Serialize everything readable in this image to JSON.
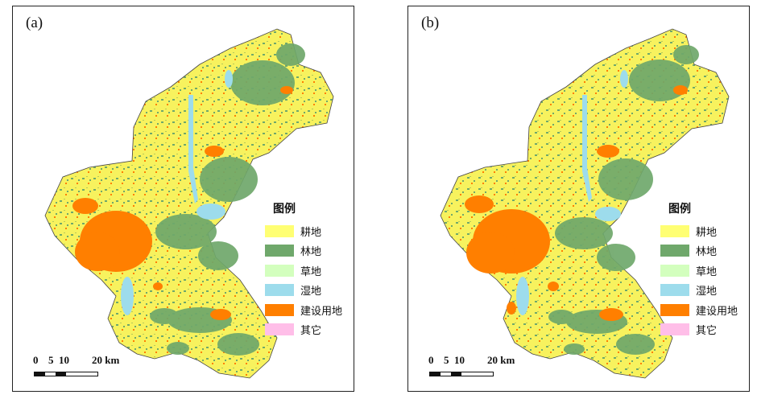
{
  "panels": [
    {
      "id": "a",
      "label": "(a)",
      "legend": {
        "title": "图例",
        "items": [
          {
            "label": "耕地",
            "color": "#ffff73"
          },
          {
            "label": "林地",
            "color": "#6fa86b"
          },
          {
            "label": "草地",
            "color": "#d3ffbe"
          },
          {
            "label": "湿地",
            "color": "#9ddcec"
          },
          {
            "label": "建设用地",
            "color": "#ff7f00"
          },
          {
            "label": "其它",
            "color": "#ffbee8"
          }
        ]
      },
      "scale": {
        "ticks": [
          "0",
          "5",
          "10",
          "20 km"
        ]
      }
    },
    {
      "id": "b",
      "label": "(b)",
      "legend": {
        "title": "图例",
        "items": [
          {
            "label": "耕地",
            "color": "#ffff73"
          },
          {
            "label": "林地",
            "color": "#6fa86b"
          },
          {
            "label": "草地",
            "color": "#d3ffbe"
          },
          {
            "label": "湿地",
            "color": "#9ddcec"
          },
          {
            "label": "建设用地",
            "color": "#ff7f00"
          },
          {
            "label": "其它",
            "color": "#ffbee8"
          }
        ]
      },
      "scale": {
        "ticks": [
          "0",
          "5",
          "10",
          "20 km"
        ]
      }
    }
  ]
}
